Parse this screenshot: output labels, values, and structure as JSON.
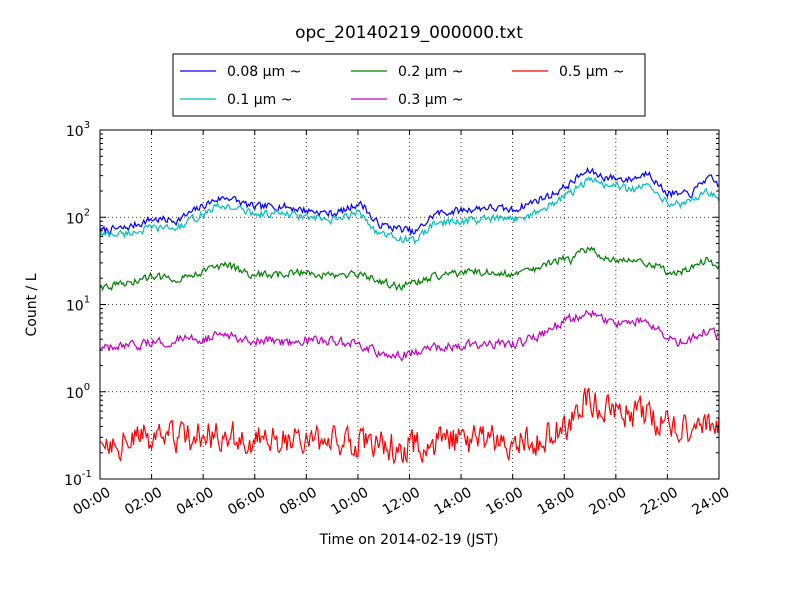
{
  "chart_data": {
    "type": "line",
    "title": "opc_20140219_000000.txt",
    "xlabel": "Time on 2014-02-19 (JST)",
    "ylabel": "Count / L",
    "y_scale": "log",
    "ylim": [
      0.1,
      1000
    ],
    "xlim_hours": [
      0,
      24
    ],
    "grid": true,
    "legend_position": "top-center, outside plot",
    "x_ticks": [
      "00:00",
      "02:00",
      "04:00",
      "06:00",
      "08:00",
      "10:00",
      "12:00",
      "14:00",
      "16:00",
      "18:00",
      "20:00",
      "22:00",
      "24:00"
    ],
    "y_ticks": [
      {
        "base": "10",
        "exp": "-1",
        "value": 0.1
      },
      {
        "base": "10",
        "exp": "0",
        "value": 1
      },
      {
        "base": "10",
        "exp": "1",
        "value": 10
      },
      {
        "base": "10",
        "exp": "2",
        "value": 100
      },
      {
        "base": "10",
        "exp": "3",
        "value": 1000
      }
    ],
    "series": [
      {
        "name": "0.08 μm ~",
        "color": "#0000ff",
        "noise": 0.04,
        "hours": [
          0,
          1,
          2,
          3,
          4,
          4.5,
          5,
          5.5,
          6,
          7,
          8,
          9,
          9.5,
          10,
          10.3,
          10.6,
          11,
          11.5,
          12,
          12.2,
          12.5,
          13,
          14,
          15,
          16,
          17,
          17.5,
          18,
          18.3,
          18.6,
          19,
          19.5,
          20,
          20.5,
          21,
          21.3,
          21.6,
          22,
          22.5,
          23,
          23.4,
          23.7,
          24
        ],
        "values": [
          70,
          75,
          95,
          92,
          135,
          160,
          170,
          145,
          130,
          135,
          120,
          110,
          120,
          145,
          130,
          90,
          80,
          75,
          70,
          65,
          80,
          110,
          120,
          130,
          120,
          160,
          180,
          220,
          250,
          300,
          340,
          290,
          280,
          270,
          300,
          340,
          240,
          190,
          180,
          190,
          270,
          270,
          235
        ]
      },
      {
        "name": "0.1 μm ~",
        "color": "#00bfbf",
        "noise": 0.04,
        "hours": [
          0,
          1,
          2,
          3,
          4,
          4.5,
          5,
          5.5,
          6,
          7,
          8,
          9,
          9.5,
          10,
          10.3,
          10.6,
          11,
          11.5,
          12,
          12.2,
          12.5,
          13,
          14,
          15,
          16,
          17,
          17.5,
          18,
          18.3,
          18.6,
          19,
          19.5,
          20,
          20.5,
          21,
          21.3,
          21.6,
          22,
          22.5,
          23,
          23.4,
          23.7,
          24
        ],
        "values": [
          63,
          65,
          75,
          75,
          110,
          130,
          135,
          120,
          110,
          110,
          100,
          90,
          100,
          115,
          100,
          72,
          62,
          58,
          55,
          52,
          65,
          85,
          90,
          95,
          95,
          115,
          140,
          175,
          190,
          230,
          270,
          240,
          230,
          210,
          210,
          255,
          190,
          150,
          140,
          155,
          200,
          185,
          160
        ]
      },
      {
        "name": "0.2 μm ~",
        "color": "#008000",
        "noise": 0.04,
        "hours": [
          0,
          1,
          2,
          3,
          4,
          4.5,
          5,
          5.5,
          6,
          7,
          8,
          8.5,
          9,
          10,
          11,
          11.5,
          12,
          12.5,
          13,
          14,
          15,
          16,
          17,
          17.5,
          18,
          18.3,
          18.6,
          19,
          19.5,
          20,
          21,
          21.5,
          22,
          22.5,
          23,
          23.5,
          24
        ],
        "values": [
          16,
          17,
          21,
          20,
          24,
          27,
          28,
          24,
          22,
          22,
          24,
          22,
          21,
          22,
          18,
          16,
          17,
          19,
          21,
          23,
          24,
          22,
          26,
          30,
          34,
          32,
          39,
          43,
          36,
          33,
          32,
          28,
          24,
          24,
          27,
          32,
          28
        ]
      },
      {
        "name": "0.3 μm ~",
        "color": "#bf00bf",
        "noise": 0.05,
        "hours": [
          0,
          1,
          2,
          3,
          4,
          4.5,
          5,
          5.5,
          6,
          7,
          8,
          9,
          10,
          11,
          11.5,
          12,
          12.5,
          13,
          14,
          15,
          16,
          17,
          17.5,
          18,
          18.3,
          18.6,
          19,
          19.5,
          20,
          21,
          21.5,
          22,
          22.5,
          23,
          23.5,
          24
        ],
        "values": [
          3.1,
          3.2,
          3.6,
          3.9,
          4.1,
          4.3,
          4.4,
          4.2,
          3.8,
          3.8,
          3.9,
          3.8,
          3.4,
          2.7,
          2.5,
          2.7,
          3.0,
          3.2,
          3.4,
          3.6,
          3.5,
          4.2,
          5.2,
          6.5,
          6.8,
          7.5,
          8.5,
          7.0,
          6.0,
          6.5,
          5.5,
          4.0,
          3.7,
          4.2,
          5.0,
          4.6
        ]
      },
      {
        "name": "0.5 μm ~",
        "color": "#ff0000",
        "noise": 0.16,
        "hours": [
          0,
          1,
          2,
          3,
          4,
          4.5,
          5,
          5.5,
          6,
          7,
          8,
          9,
          10,
          11,
          11.5,
          12,
          12.5,
          13,
          14,
          15,
          16,
          17,
          17.5,
          18,
          18.3,
          18.6,
          18.8,
          19,
          19.3,
          19.6,
          20,
          21,
          21.5,
          22,
          22.5,
          23,
          23.5,
          24
        ],
        "values": [
          0.28,
          0.27,
          0.3,
          0.29,
          0.31,
          0.33,
          0.32,
          0.3,
          0.27,
          0.28,
          0.28,
          0.28,
          0.27,
          0.25,
          0.22,
          0.24,
          0.25,
          0.26,
          0.28,
          0.28,
          0.26,
          0.28,
          0.33,
          0.42,
          0.45,
          0.55,
          0.85,
          0.8,
          0.7,
          0.65,
          0.55,
          0.55,
          0.45,
          0.42,
          0.35,
          0.38,
          0.42,
          0.42
        ]
      }
    ]
  }
}
